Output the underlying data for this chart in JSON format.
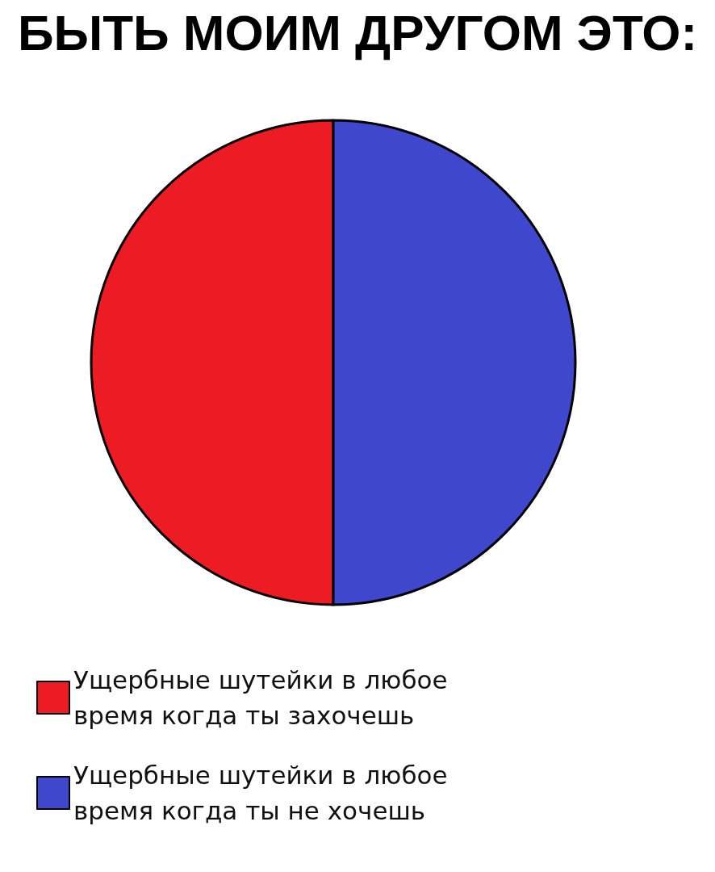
{
  "chart_data": {
    "type": "pie",
    "title": "БЫТЬ МОИМ ДРУГОМ ЭТО:",
    "categories": [
      "Ущербные шутейки в любое время когда ты захочешь",
      "Ущербные шутейки в любое время когда ты не хочешь"
    ],
    "values": [
      50,
      50
    ],
    "colors": [
      "#ed1c24",
      "#3f48cc"
    ],
    "legend": "bottom left"
  }
}
